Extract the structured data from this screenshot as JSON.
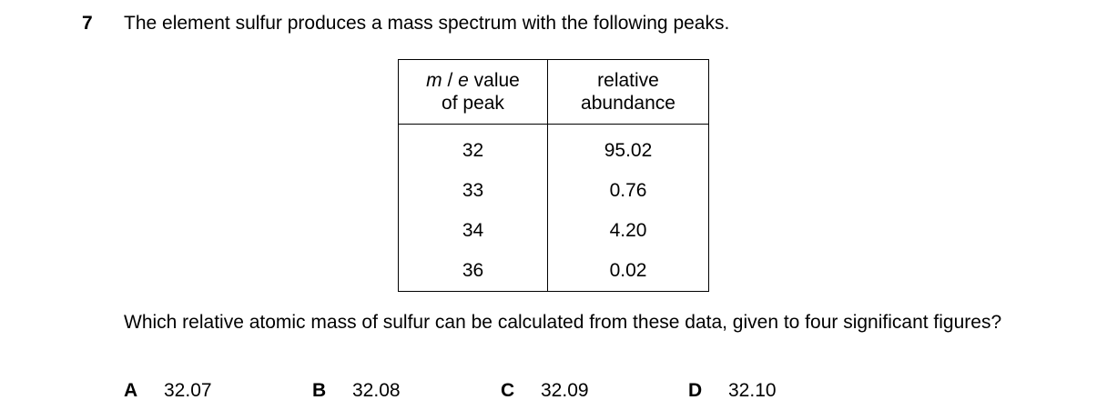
{
  "question": {
    "number": "7",
    "stem": "The element sulfur produces a mass spectrum with the following peaks.",
    "prompt": "Which relative atomic mass of sulfur can be calculated from these data, given to four significant figures?"
  },
  "table": {
    "header": {
      "col1_m": "m",
      "col1_slash": " / ",
      "col1_e": "e",
      "col1_rest": " value",
      "col1_line2": "of peak",
      "col2_line1": "relative",
      "col2_line2": "abundance"
    },
    "rows": [
      {
        "mz": "32",
        "abundance": "95.02"
      },
      {
        "mz": "33",
        "abundance": "0.76"
      },
      {
        "mz": "34",
        "abundance": "4.20"
      },
      {
        "mz": "36",
        "abundance": "0.02"
      }
    ]
  },
  "options": [
    {
      "letter": "A",
      "value": "32.07"
    },
    {
      "letter": "B",
      "value": "32.08"
    },
    {
      "letter": "C",
      "value": "32.09"
    },
    {
      "letter": "D",
      "value": "32.10"
    }
  ]
}
